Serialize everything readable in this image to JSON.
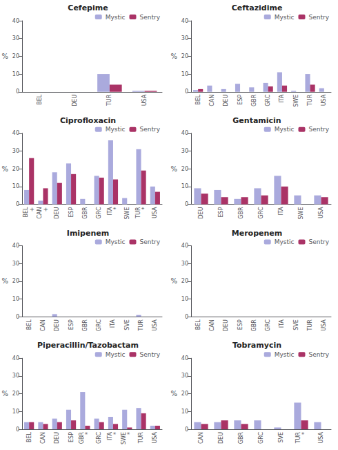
{
  "chart_data": [
    {
      "type": "bar",
      "title": "Cefepime",
      "ylabel": "%",
      "categories": [
        "BEL",
        "DEU",
        "TUR",
        "USA"
      ],
      "series": [
        {
          "name": "Mystic",
          "color": "#aaaadd",
          "values": [
            0,
            0,
            10,
            0.5
          ]
        },
        {
          "name": "Sentry",
          "color": "#aa3366",
          "values": [
            0,
            0,
            4,
            0.5
          ]
        }
      ],
      "ylim": [
        0,
        40
      ],
      "yticks": [
        0,
        10,
        20,
        30,
        40
      ],
      "grid": false,
      "legend": "upper right"
    },
    {
      "type": "bar",
      "title": "Ceftazidime",
      "ylabel": "%",
      "categories": [
        "BEL",
        "CAN",
        "DEU",
        "ESP",
        "GBR",
        "GRC",
        "ITA",
        "SWE",
        "TUR",
        "USA"
      ],
      "series": [
        {
          "name": "Mystic",
          "color": "#aaaadd",
          "values": [
            1,
            3.5,
            1.5,
            4.5,
            2.5,
            5,
            11,
            0.5,
            10,
            2
          ]
        },
        {
          "name": "Sentry",
          "color": "#aa3366",
          "values": [
            1.5,
            0,
            0,
            0,
            0,
            3,
            3.5,
            0,
            4,
            0
          ]
        }
      ],
      "ylim": [
        0,
        40
      ],
      "yticks": [
        0,
        10,
        20,
        30,
        40
      ],
      "grid": false,
      "legend": "upper right"
    },
    {
      "type": "bar",
      "title": "Ciprofloxacin",
      "ylabel": "%",
      "categories": [
        "BEL\n+",
        "CAN\n+",
        "DEU",
        "ESP",
        "GBR",
        "GRC",
        "ITA\n*",
        "SWE",
        "TUR\n*",
        "USA"
      ],
      "series": [
        {
          "name": "Mystic",
          "color": "#aaaadd",
          "values": [
            8,
            2,
            18,
            23,
            3,
            16,
            36,
            3.5,
            31,
            10
          ]
        },
        {
          "name": "Sentry",
          "color": "#aa3366",
          "values": [
            26,
            9,
            12,
            17,
            0,
            15,
            14,
            0,
            19,
            7
          ]
        }
      ],
      "ylim": [
        0,
        40
      ],
      "yticks": [
        0,
        10,
        20,
        30,
        40
      ],
      "grid": false,
      "legend": "upper right"
    },
    {
      "type": "bar",
      "title": "Gentamicin",
      "ylabel": "%",
      "categories": [
        "DEU",
        "ESP",
        "GBR",
        "GRC",
        "ITA",
        "SWE",
        "USA"
      ],
      "series": [
        {
          "name": "Mystic",
          "color": "#aaaadd",
          "values": [
            9,
            8,
            3,
            9,
            16,
            5,
            5
          ]
        },
        {
          "name": "Sentry",
          "color": "#aa3366",
          "values": [
            6,
            4,
            4,
            5,
            10,
            0,
            4
          ]
        }
      ],
      "ylim": [
        0,
        40
      ],
      "yticks": [
        0,
        10,
        20,
        30,
        40
      ],
      "grid": false,
      "legend": "upper right"
    },
    {
      "type": "bar",
      "title": "Imipenem",
      "ylabel": "%",
      "categories": [
        "BEL",
        "CAN",
        "DEU",
        "ESP",
        "GBR",
        "GRC",
        "ITA",
        "SVE",
        "TUR",
        "USA"
      ],
      "series": [
        {
          "name": "Mystic",
          "color": "#aaaadd",
          "values": [
            0,
            0,
            1.5,
            0,
            0,
            0,
            0,
            0,
            1,
            0
          ]
        },
        {
          "name": "Sentry",
          "color": "#aa3366",
          "values": [
            0,
            0,
            0,
            0,
            0,
            0,
            0,
            0,
            0,
            0
          ]
        }
      ],
      "ylim": [
        0,
        40
      ],
      "yticks": [
        0,
        10,
        20,
        30,
        40
      ],
      "grid": false,
      "legend": "upper right"
    },
    {
      "type": "bar",
      "title": "Meropenem",
      "ylabel": "%",
      "categories": [
        "BEL",
        "CAN",
        "DEU",
        "ESP",
        "GBR",
        "GRC",
        "ITA",
        "SVE",
        "TUR",
        "USA"
      ],
      "series": [
        {
          "name": "Mystic",
          "color": "#aaaadd",
          "values": [
            0,
            0,
            0,
            0,
            0,
            0,
            0,
            0,
            0,
            0
          ]
        },
        {
          "name": "Sentry",
          "color": "#aa3366",
          "values": [
            0,
            0,
            0,
            0,
            0,
            0,
            0,
            0,
            0,
            0
          ]
        }
      ],
      "ylim": [
        0,
        40
      ],
      "yticks": [
        0,
        10,
        20,
        30,
        40
      ],
      "grid": false,
      "legend": "upper right"
    },
    {
      "type": "bar",
      "title": "Piperacillin/Tazobactam",
      "ylabel": "%",
      "categories": [
        "BEL",
        "CAN",
        "DEU",
        "ESP",
        "GBR\n*",
        "GRC",
        "ITA\n*",
        "SWE\n*",
        "TUR",
        "USA"
      ],
      "series": [
        {
          "name": "Mystic",
          "color": "#aaaadd",
          "values": [
            4,
            4,
            6,
            11,
            21,
            6,
            7,
            11,
            12,
            2
          ]
        },
        {
          "name": "Sentry",
          "color": "#aa3366",
          "values": [
            4,
            3,
            4,
            5,
            2,
            4,
            3,
            1,
            9,
            2
          ]
        }
      ],
      "ylim": [
        0,
        40
      ],
      "yticks": [
        0,
        10,
        20,
        30,
        40
      ],
      "grid": false,
      "legend": "upper right"
    },
    {
      "type": "bar",
      "title": "Tobramycin",
      "ylabel": "%",
      "categories": [
        "CAN",
        "DEU",
        "GBR",
        "GRC",
        "SVE",
        "TUR\n*",
        "USA"
      ],
      "series": [
        {
          "name": "Mystic",
          "color": "#aaaadd",
          "values": [
            4,
            4,
            5,
            5,
            1,
            15,
            4
          ]
        },
        {
          "name": "Sentry",
          "color": "#aa3366",
          "values": [
            3,
            5,
            3,
            0,
            0,
            5,
            0
          ]
        }
      ],
      "ylim": [
        0,
        40
      ],
      "yticks": [
        0,
        10,
        20,
        30,
        40
      ],
      "grid": false,
      "legend": "upper right"
    }
  ]
}
